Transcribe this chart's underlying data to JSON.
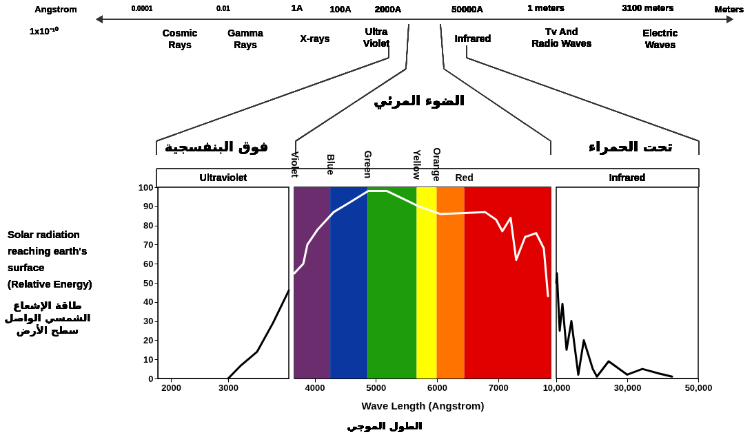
{
  "chart_data": [
    {
      "type": "line",
      "title": "Ultraviolet",
      "ylabel": "Solar radiation\nreaching earth's\nsurface\n(Relative Energy)",
      "xlim": [
        1770,
        4060
      ],
      "xticks": [
        2000,
        3000
      ],
      "ylim": [
        0,
        100
      ],
      "yticks": [
        0,
        10,
        20,
        30,
        40,
        50,
        60,
        70,
        80,
        90,
        100
      ],
      "grid": false,
      "series": [
        {
          "color": "#000000",
          "x": [
            3000,
            3229,
            3506,
            3783,
            4060
          ],
          "values": [
            0,
            7,
            14,
            29,
            46
          ]
        }
      ],
      "annotations": [
        "Angstrom",
        "1x10⁻¹⁰",
        "0.0001",
        "0.01",
        "1A",
        "100A",
        "Cosmic\nRays",
        "Gamma\nRays",
        "X-rays",
        "فوق البنفسجية",
        "طاقة الإشعاع\nالشمسي الواصل\nسطح الأرض"
      ]
    },
    {
      "type": "line",
      "xlabel": "Wave Length (Angstrom)",
      "xlim": [
        3667,
        7859
      ],
      "xticks": [
        4000,
        5000,
        6000,
        7000
      ],
      "ylim": [
        0,
        100
      ],
      "tick_labels": "x",
      "grid": false,
      "series": [
        {
          "color": "#ffffff",
          "x": [
            3667,
            3814,
            3881,
            4051,
            4311,
            4571,
            4876,
            5181,
            5441,
            5701,
            6051,
            6785,
            6966,
            7068,
            7203,
            7294,
            7441,
            7621,
            7746,
            7814
          ],
          "values": [
            55,
            60,
            70,
            78,
            87,
            92,
            98,
            98,
            94,
            90,
            86,
            87,
            83,
            77,
            84,
            62,
            74,
            76,
            68,
            43
          ]
        }
      ],
      "bands": [
        {
          "axis": "x",
          "from": 3667,
          "to": 4254,
          "label": "Violet",
          "color": "#6b2d6e"
        },
        {
          "axis": "x",
          "from": 4254,
          "to": 4864,
          "label": "Blue",
          "color": "#0a37a0"
        },
        {
          "axis": "x",
          "from": 4864,
          "to": 5667,
          "label": "Green",
          "color": "#1f9c0c"
        },
        {
          "axis": "x",
          "from": 5667,
          "to": 5994,
          "label": "Yellow",
          "color": "#ffff00"
        },
        {
          "axis": "x",
          "from": 5994,
          "to": 6446,
          "label": "Orange",
          "color": "#ff7300"
        },
        {
          "axis": "x",
          "from": 6446,
          "to": 7859,
          "label": "Red",
          "color": "#e10000"
        }
      ],
      "annotations": [
        "2000A",
        "50000A",
        "Ultra\nViolet",
        "Infrared",
        "الضوء المرئي",
        "الطول الموجي"
      ]
    },
    {
      "type": "line",
      "title": "Infrared",
      "xlim": [
        10000,
        50000
      ],
      "xticks": [
        {
          "value": 10000,
          "label": "10,000"
        },
        {
          "value": 30000,
          "label": "30,000"
        },
        {
          "value": 50000,
          "label": "50,000"
        }
      ],
      "ylim": [
        0,
        100
      ],
      "tick_labels": "x",
      "grid": false,
      "series": [
        {
          "color": "#000000",
          "x": [
            10000,
            10190,
            10970,
            11750,
            12910,
            14270,
            16210,
            17770,
            20290,
            21460,
            24760,
            30000,
            34270,
            39130,
            42620
          ],
          "values": [
            50,
            55,
            25,
            39,
            15,
            30,
            2,
            20,
            5,
            1,
            9,
            2,
            5,
            2.5,
            1
          ]
        }
      ],
      "annotations": [
        "1 meters",
        "3100 meters",
        "Meters",
        "Tv And\nRadio Waves",
        "Electric\nWaves",
        "تحت الحمراء"
      ]
    }
  ]
}
